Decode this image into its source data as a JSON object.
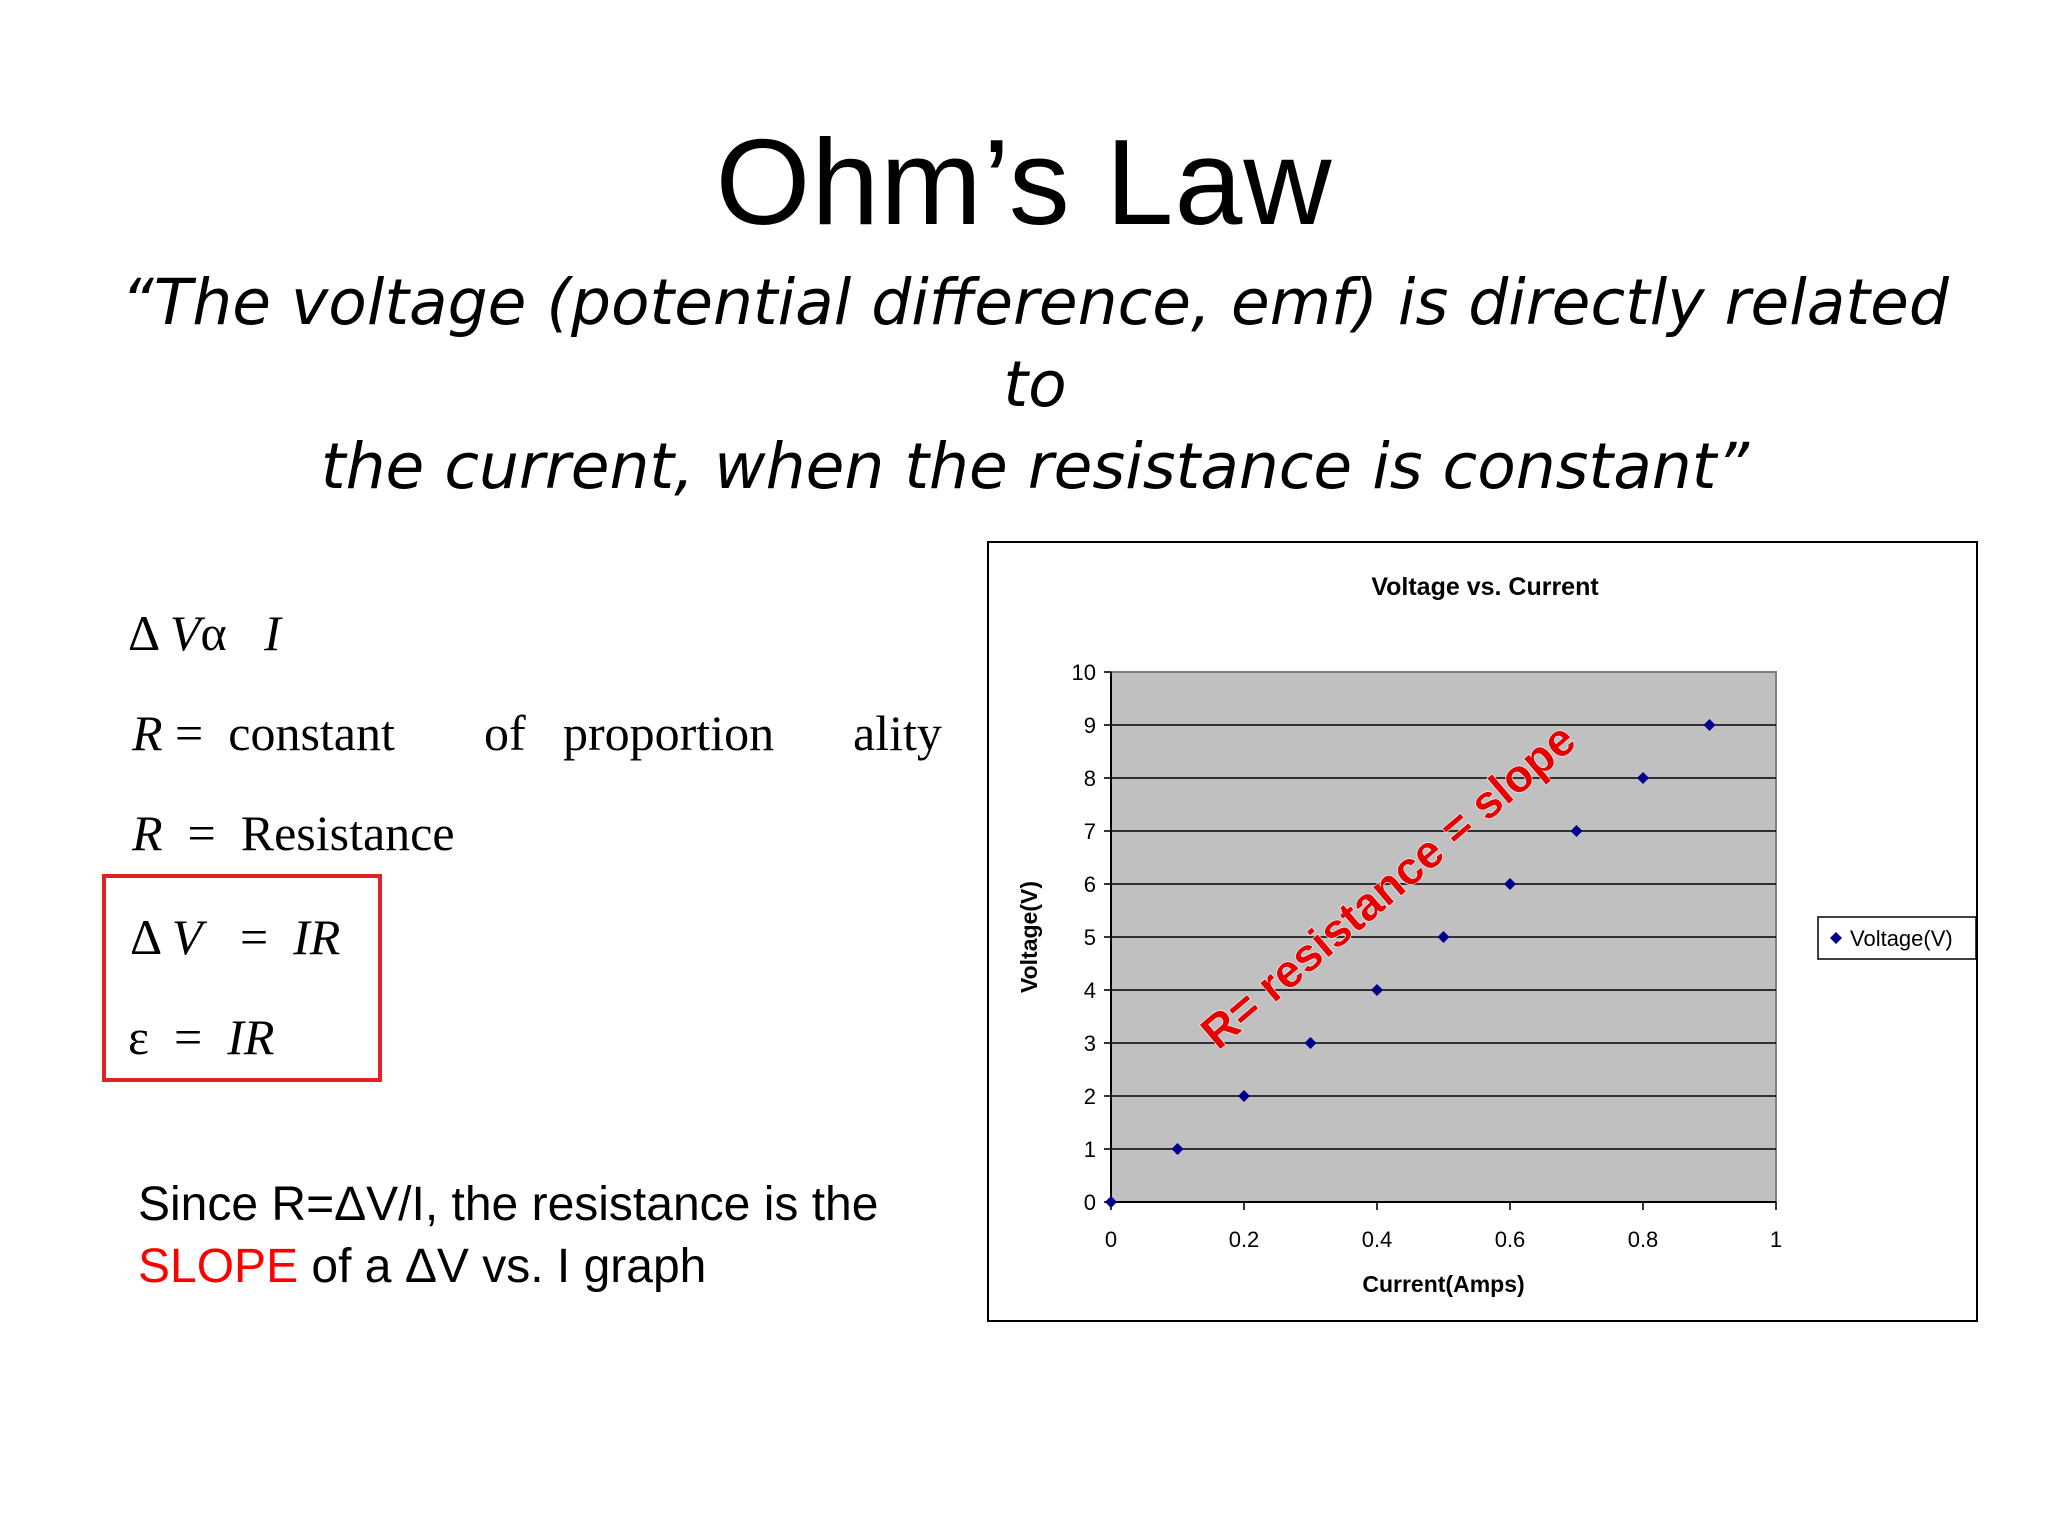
{
  "slide": {
    "title": "Ohm’s Law",
    "quote_line1": "“The voltage (potential difference, emf) is directly related to",
    "quote_line2": "the current, when the resistance is constant”"
  },
  "equations": {
    "line1": {
      "delta": "Δ",
      "v": "V",
      "alpha": "α",
      "i": "I"
    },
    "line2": {
      "r": "R",
      "eq": "=",
      "w1": "constant",
      "w2": "of",
      "w3": "proportion",
      "w4": "ality"
    },
    "line3": {
      "r": "R",
      "eq": "=",
      "w1": "Resistance"
    },
    "line4": {
      "delta": "Δ",
      "v": "V",
      "eq": "=",
      "ir": "IR"
    },
    "line5": {
      "eps": "ε",
      "eq": "=",
      "ir": "IR"
    }
  },
  "note": {
    "part1": "Since R=ΔV/I, the resistance is the",
    "slope_word": "SLOPE",
    "part2": " of a ΔV vs. I graph"
  },
  "colors": {
    "marker": "#00008b",
    "plot_bg": "#c0c0c0",
    "annotation": "#e60000",
    "box": "#e02222"
  },
  "chart_data": {
    "type": "scatter",
    "title": "Voltage vs. Current",
    "xlabel": "Current(Amps)",
    "ylabel": "Voltage(V)",
    "xlim": [
      0,
      1
    ],
    "ylim": [
      0,
      10
    ],
    "x_ticks": [
      "0",
      "0.2",
      "0.4",
      "0.6",
      "0.8",
      "1"
    ],
    "y_ticks": [
      "0",
      "1",
      "2",
      "3",
      "4",
      "5",
      "6",
      "7",
      "8",
      "9",
      "10"
    ],
    "grid": "horizontal",
    "legend": "right",
    "series": [
      {
        "name": "Voltage(V)",
        "x": [
          0,
          0.1,
          0.2,
          0.3,
          0.4,
          0.5,
          0.6,
          0.7,
          0.8,
          0.9
        ],
        "y": [
          0,
          1,
          2,
          3,
          4,
          5,
          6,
          7,
          8,
          9
        ]
      }
    ],
    "annotation": "R= resistance = slope"
  }
}
